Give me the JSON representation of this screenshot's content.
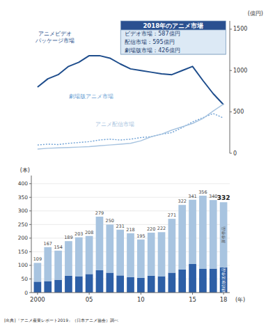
{
  "chart_data": [
    {
      "type": "line",
      "categories": [
        null,
        null,
        null,
        null,
        null,
        null,
        null,
        null,
        null,
        null,
        null,
        null,
        null,
        null,
        null,
        null,
        null,
        null,
        null
      ],
      "y2label": "(億円)",
      "y2lim": [
        0,
        1600
      ],
      "y2ticks": [
        0,
        500,
        1000,
        1500
      ],
      "grid": false,
      "series": [
        {
          "name": "アニメビデオ\nパッケージ市場",
          "color": "#1e4d8c",
          "line_style": "solid",
          "axis": "y2",
          "values": [
            800,
            900,
            950,
            1050,
            1100,
            1180,
            1180,
            1150,
            1080,
            1020,
            1000,
            980,
            960,
            950,
            1000,
            1050,
            880,
            720,
            587
          ]
        },
        {
          "name": "劇場版アニメ市場",
          "color": "#6b9fd4",
          "line_style": "dotted",
          "axis": "y2",
          "values": [
            100,
            110,
            105,
            120,
            130,
            140,
            160,
            170,
            160,
            170,
            190,
            200,
            230,
            250,
            310,
            380,
            430,
            480,
            426
          ]
        },
        {
          "name": "アニメ配信市場",
          "color": "#a8c4e0",
          "line_style": "solid",
          "axis": "y2",
          "values": [
            50,
            60,
            65,
            70,
            75,
            80,
            90,
            100,
            110,
            120,
            150,
            200,
            230,
            280,
            320,
            360,
            420,
            510,
            595
          ]
        }
      ],
      "annotations": [
        "2018年のアニメ市場",
        "ビデオ市場：587億円",
        "配信市場：595億円",
        "劇場版市場：426億円"
      ]
    },
    {
      "type": "bar",
      "stacked": true,
      "categories": [
        "2000",
        null,
        null,
        null,
        null,
        "05",
        null,
        null,
        null,
        null,
        "10",
        null,
        null,
        null,
        null,
        "15",
        null,
        null,
        "18"
      ],
      "xlabel": "(年)",
      "ylabel": "(本)",
      "ylim": [
        0,
        430
      ],
      "yticks": [
        0,
        50,
        100,
        150,
        200,
        250,
        300,
        350,
        400
      ],
      "grid": true,
      "series": [
        {
          "name": "継続放送作品",
          "color": "#2d5fa6",
          "values": [
            40,
            42,
            47,
            62,
            60,
            68,
            82,
            73,
            63,
            57,
            54,
            62,
            60,
            73,
            85,
            105,
            87,
            88,
            93
          ]
        },
        {
          "name": "新作作品",
          "color": "#a8c4e0",
          "values": [
            69,
            125,
            107,
            127,
            143,
            140,
            197,
            177,
            168,
            161,
            141,
            158,
            162,
            198,
            237,
            236,
            269,
            252,
            239
          ]
        }
      ],
      "totals": [
        109,
        167,
        154,
        189,
        203,
        208,
        279,
        250,
        231,
        218,
        195,
        220,
        222,
        271,
        322,
        341,
        356,
        340,
        332
      ],
      "annotations": [
        "[出典]『アニメ産業レポート2019』（日本アニメ協会）調べ"
      ]
    }
  ]
}
